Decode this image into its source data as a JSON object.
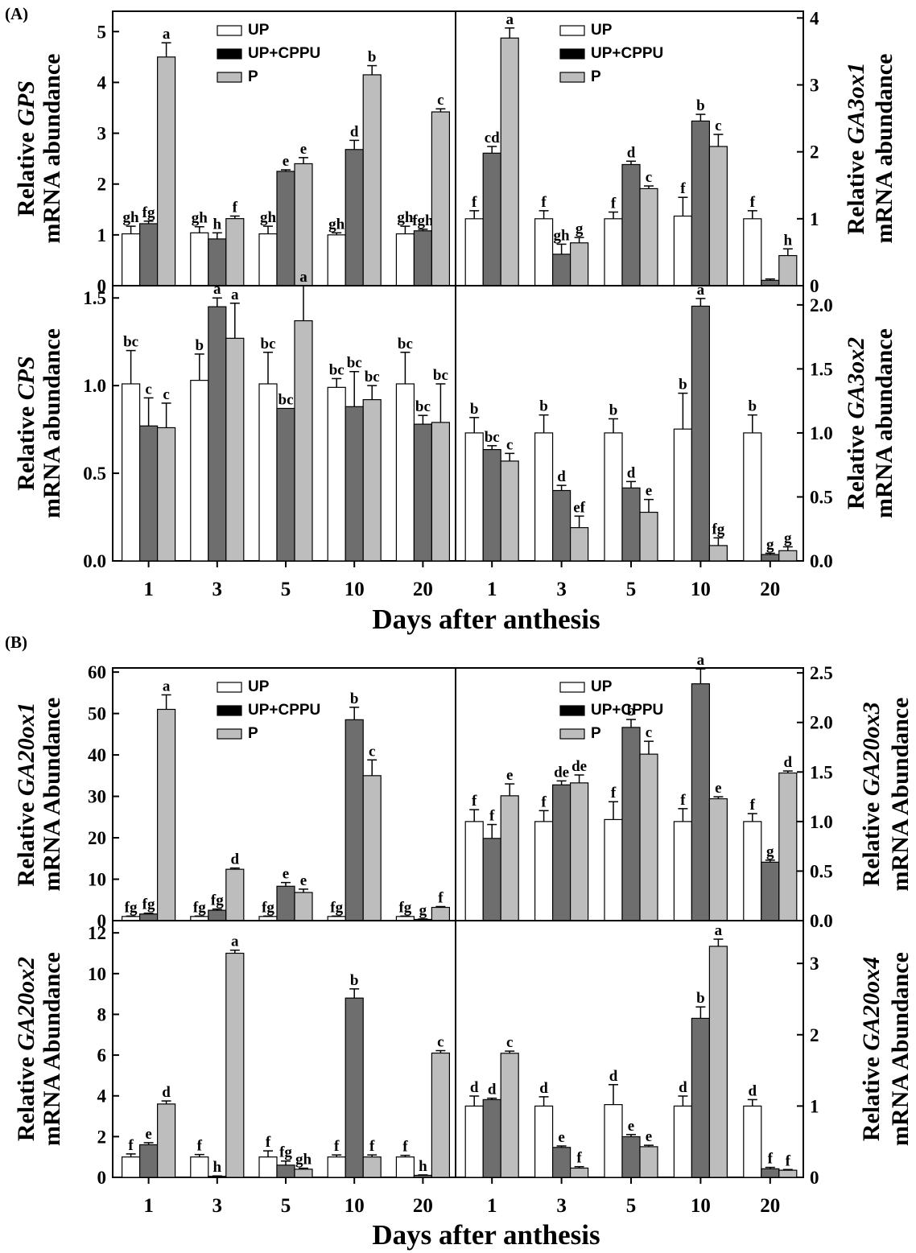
{
  "panel_labels": {
    "A": "(A)",
    "B": "(B)"
  },
  "xaxis_title_A": "Days after anthesis",
  "xaxis_title_B": "Days after anthesis",
  "legend": {
    "labels": [
      "UP",
      "UP+CPPU",
      "P"
    ]
  },
  "colors": {
    "UP": "#ffffff",
    "UP+CPPU": "#6e6e6e",
    "P": "#bdbdbd",
    "legend_UP+CPPU": "#000000"
  },
  "chart_data": [
    {
      "id": "gps",
      "type": "bar",
      "figure": "A",
      "ylabel": [
        "Relative GPS",
        "mRNA abundance"
      ],
      "categories": [
        "1",
        "3",
        "5",
        "10",
        "20"
      ],
      "ylim": [
        0,
        5.4
      ],
      "yticks": [
        "0",
        "1",
        "2",
        "3",
        "4",
        "5"
      ],
      "legend": true,
      "series": [
        {
          "name": "UP",
          "values": [
            1.02,
            1.04,
            1.02,
            1.0,
            1.02
          ],
          "errors": [
            0.15,
            0.12,
            0.15,
            0.04,
            0.15
          ],
          "letters": [
            "gh",
            "gh",
            "gh",
            "gh",
            "gh"
          ]
        },
        {
          "name": "UP+CPPU",
          "values": [
            1.22,
            0.92,
            2.25,
            2.68,
            1.08
          ],
          "errors": [
            0.05,
            0.12,
            0.03,
            0.18,
            0.03
          ],
          "letters": [
            "fg",
            "h",
            "e",
            "d",
            "fgh"
          ]
        },
        {
          "name": "P",
          "values": [
            4.5,
            1.32,
            2.4,
            4.15,
            3.42
          ],
          "errors": [
            0.28,
            0.05,
            0.12,
            0.18,
            0.06
          ],
          "letters": [
            "a",
            "f",
            "e",
            "b",
            "c"
          ]
        }
      ]
    },
    {
      "id": "ga3ox1",
      "type": "bar",
      "figure": "A",
      "ylabel": [
        "Relative GA3ox1",
        "mRNA abundance"
      ],
      "categories": [
        "1",
        "3",
        "5",
        "10",
        "20"
      ],
      "ylim": [
        0,
        4.1
      ],
      "yticks": [
        "0",
        "1",
        "2",
        "3",
        "4"
      ],
      "legend": true,
      "series": [
        {
          "name": "UP",
          "values": [
            1.0,
            1.0,
            1.0,
            1.04,
            1.0
          ],
          "errors": [
            0.12,
            0.12,
            0.1,
            0.28,
            0.12
          ],
          "letters": [
            "f",
            "f",
            "f",
            "f",
            "f"
          ]
        },
        {
          "name": "UP+CPPU",
          "values": [
            1.98,
            0.47,
            1.81,
            2.46,
            0.08
          ],
          "errors": [
            0.1,
            0.15,
            0.05,
            0.1,
            0.02
          ],
          "letters": [
            "cd",
            "gh",
            "d",
            "b",
            ""
          ]
        },
        {
          "name": "P",
          "values": [
            3.7,
            0.64,
            1.45,
            2.08,
            0.45
          ],
          "errors": [
            0.15,
            0.08,
            0.04,
            0.18,
            0.1
          ],
          "letters": [
            "a",
            "g",
            "c",
            "c",
            "h"
          ]
        }
      ]
    },
    {
      "id": "cps",
      "type": "bar",
      "figure": "A",
      "ylabel": [
        "Relative CPS",
        "mRNA abundance"
      ],
      "categories": [
        "1",
        "3",
        "5",
        "10",
        "20"
      ],
      "ylim": [
        0,
        1.57
      ],
      "yticks": [
        "0.0",
        "0.5",
        "1.0",
        "1.5"
      ],
      "legend": false,
      "series": [
        {
          "name": "UP",
          "values": [
            1.01,
            1.03,
            1.01,
            0.99,
            1.01
          ],
          "errors": [
            0.19,
            0.15,
            0.18,
            0.05,
            0.18
          ],
          "letters": [
            "bc",
            "b",
            "bc",
            "bc",
            "bc"
          ]
        },
        {
          "name": "UP+CPPU",
          "values": [
            0.77,
            1.45,
            0.87,
            0.88,
            0.78
          ],
          "errors": [
            0.16,
            0.05,
            0.0,
            0.2,
            0.05
          ],
          "letters": [
            "c",
            "a",
            "bc",
            "bc",
            "bc"
          ]
        },
        {
          "name": "P",
          "values": [
            0.76,
            1.27,
            1.37,
            0.92,
            0.79
          ],
          "errors": [
            0.14,
            0.2,
            0.2,
            0.08,
            0.22
          ],
          "letters": [
            "c",
            "a",
            "a",
            "bc",
            "bc"
          ]
        }
      ]
    },
    {
      "id": "ga3ox2",
      "type": "bar",
      "figure": "A",
      "ylabel": [
        "Relative GA3ox2",
        "mRNA abundance"
      ],
      "categories": [
        "1",
        "3",
        "5",
        "10",
        "20"
      ],
      "ylim": [
        0,
        2.15
      ],
      "yticks": [
        "0.0",
        "0.5",
        "1.0",
        "1.5",
        "2.0"
      ],
      "legend": false,
      "series": [
        {
          "name": "UP",
          "values": [
            1.0,
            1.0,
            1.0,
            1.03,
            1.0
          ],
          "errors": [
            0.12,
            0.14,
            0.11,
            0.28,
            0.14
          ],
          "letters": [
            "b",
            "b",
            "b",
            "b",
            "b"
          ]
        },
        {
          "name": "UP+CPPU",
          "values": [
            0.87,
            0.55,
            0.57,
            1.99,
            0.05
          ],
          "errors": [
            0.03,
            0.04,
            0.05,
            0.06,
            0.01
          ],
          "letters": [
            "bc",
            "d",
            "d",
            "a",
            "g"
          ]
        },
        {
          "name": "P",
          "values": [
            0.78,
            0.26,
            0.38,
            0.12,
            0.08
          ],
          "errors": [
            0.06,
            0.09,
            0.1,
            0.06,
            0.03
          ],
          "letters": [
            "c",
            "ef",
            "e",
            "fg",
            "g"
          ]
        }
      ]
    },
    {
      "id": "ga20ox1",
      "type": "bar",
      "figure": "B",
      "ylabel": [
        "Relative GA20ox1",
        "mRNA Abundance"
      ],
      "categories": [
        "1",
        "3",
        "5",
        "10",
        "20"
      ],
      "ylim": [
        0,
        61
      ],
      "yticks": [
        "0",
        "10",
        "20",
        "30",
        "40",
        "50",
        "60"
      ],
      "legend": true,
      "series": [
        {
          "name": "UP",
          "values": [
            1.0,
            1.0,
            1.0,
            1.0,
            1.0
          ],
          "errors": [
            0.1,
            0.1,
            0.1,
            0.1,
            0.1
          ],
          "letters": [
            "fg",
            "fg",
            "fg",
            "fg",
            "fg"
          ]
        },
        {
          "name": "UP+CPPU",
          "values": [
            1.6,
            2.5,
            8.3,
            48.5,
            0.3
          ],
          "errors": [
            0.2,
            0.3,
            0.9,
            3.0,
            0.1
          ],
          "letters": [
            "fg",
            "fg",
            "e",
            "b",
            "g"
          ]
        },
        {
          "name": "P",
          "values": [
            51.0,
            12.4,
            6.8,
            35.0,
            3.2
          ],
          "errors": [
            3.5,
            0.3,
            0.8,
            3.8,
            0.2
          ],
          "letters": [
            "a",
            "d",
            "e",
            "c",
            "f"
          ]
        }
      ]
    },
    {
      "id": "ga20ox3",
      "type": "bar",
      "figure": "B",
      "ylabel": [
        "Relative GA20ox3",
        "mRNA Abundance"
      ],
      "categories": [
        "1",
        "3",
        "5",
        "10",
        "20"
      ],
      "ylim": [
        0,
        2.55
      ],
      "yticks": [
        "0.0",
        "0.5",
        "1.0",
        "1.5",
        "2.0",
        "2.5"
      ],
      "legend": true,
      "series": [
        {
          "name": "UP",
          "values": [
            1.0,
            1.0,
            1.02,
            1.0,
            1.0
          ],
          "errors": [
            0.12,
            0.11,
            0.18,
            0.13,
            0.08
          ],
          "letters": [
            "f",
            "f",
            "f",
            "f",
            "f"
          ]
        },
        {
          "name": "UP+CPPU",
          "values": [
            0.83,
            1.37,
            1.95,
            2.39,
            0.59
          ],
          "errors": [
            0.14,
            0.04,
            0.08,
            0.15,
            0.02
          ],
          "letters": [
            "f",
            "de",
            "b",
            "a",
            "g"
          ]
        },
        {
          "name": "P",
          "values": [
            1.26,
            1.39,
            1.68,
            1.23,
            1.49
          ],
          "errors": [
            0.12,
            0.08,
            0.13,
            0.02,
            0.02
          ],
          "letters": [
            "e",
            "de",
            "c",
            "e",
            "d"
          ]
        }
      ]
    },
    {
      "id": "ga20ox2",
      "type": "bar",
      "figure": "B",
      "ylabel": [
        "Relative GA20ox2",
        "mRNA Abundance"
      ],
      "categories": [
        "1",
        "3",
        "5",
        "10",
        "20"
      ],
      "ylim": [
        0,
        12.6
      ],
      "yticks": [
        "0",
        "2",
        "4",
        "6",
        "8",
        "10",
        "12"
      ],
      "legend": false,
      "series": [
        {
          "name": "UP",
          "values": [
            1.0,
            1.0,
            1.0,
            1.0,
            1.0
          ],
          "errors": [
            0.15,
            0.12,
            0.3,
            0.1,
            0.08
          ],
          "letters": [
            "f",
            "f",
            "f",
            "f",
            "f"
          ]
        },
        {
          "name": "UP+CPPU",
          "values": [
            1.6,
            0.05,
            0.6,
            8.8,
            0.1
          ],
          "errors": [
            0.1,
            0.02,
            0.2,
            0.45,
            0.02
          ],
          "letters": [
            "e",
            "h",
            "fg",
            "b",
            "h"
          ]
        },
        {
          "name": "P",
          "values": [
            3.6,
            11.0,
            0.4,
            1.0,
            6.1
          ],
          "errors": [
            0.15,
            0.15,
            0.05,
            0.1,
            0.12
          ],
          "letters": [
            "d",
            "a",
            "gh",
            "f",
            "c"
          ]
        }
      ]
    },
    {
      "id": "ga20ox4",
      "type": "bar",
      "figure": "B",
      "ylabel": [
        "Relative GA20ox4",
        "mRNA Abundance"
      ],
      "categories": [
        "1",
        "3",
        "5",
        "10",
        "20"
      ],
      "ylim": [
        0,
        3.6
      ],
      "yticks": [
        "0",
        "1",
        "2",
        "3"
      ],
      "legend": false,
      "series": [
        {
          "name": "UP",
          "values": [
            1.0,
            1.0,
            1.02,
            1.0,
            1.0
          ],
          "errors": [
            0.14,
            0.13,
            0.28,
            0.14,
            0.09
          ],
          "letters": [
            "d",
            "d",
            "d",
            "d",
            "d"
          ]
        },
        {
          "name": "UP+CPPU",
          "values": [
            1.09,
            0.42,
            0.57,
            2.23,
            0.12
          ],
          "errors": [
            0.02,
            0.02,
            0.03,
            0.16,
            0.02
          ],
          "letters": [
            "d",
            "e",
            "e",
            "b",
            "f"
          ]
        },
        {
          "name": "P",
          "values": [
            1.74,
            0.13,
            0.43,
            3.24,
            0.1
          ],
          "errors": [
            0.03,
            0.02,
            0.02,
            0.1,
            0.01
          ],
          "letters": [
            "c",
            "f",
            "e",
            "a",
            "f"
          ]
        }
      ]
    }
  ]
}
